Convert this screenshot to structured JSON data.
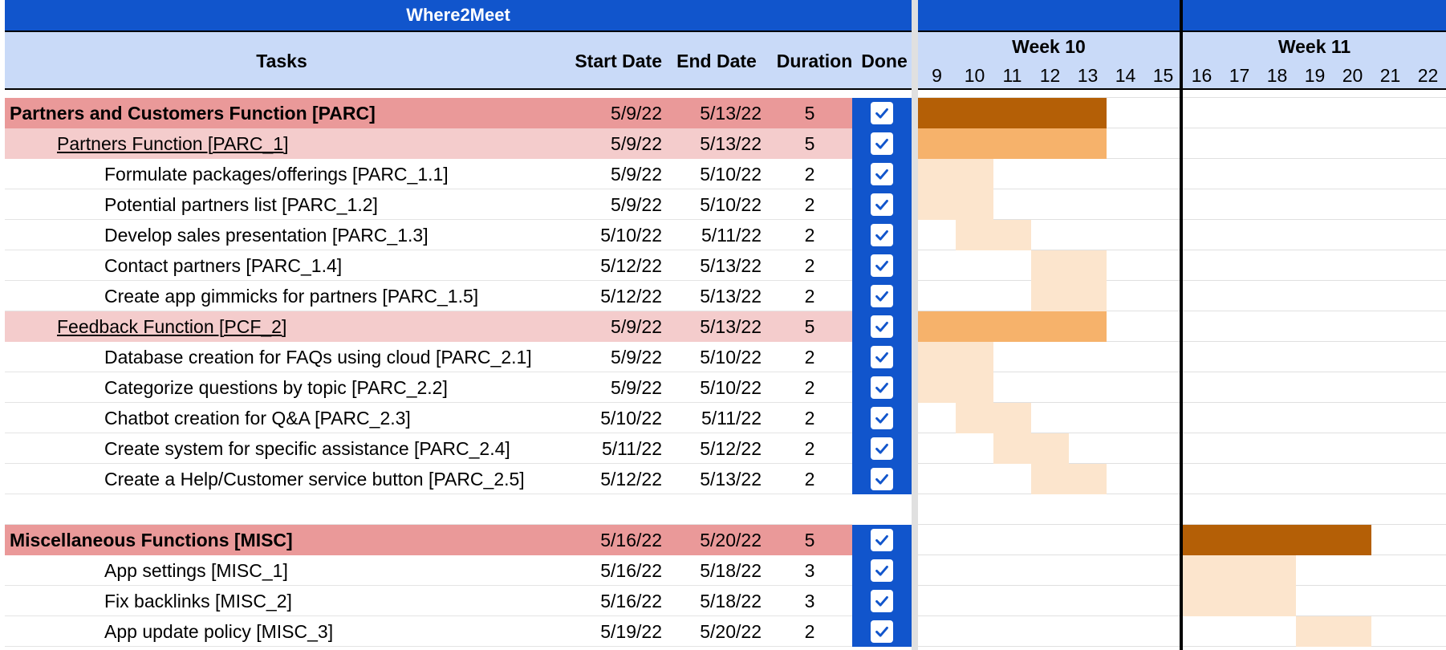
{
  "title": "Where2Meet",
  "headers": {
    "tasks": "Tasks",
    "start_date": "Start Date",
    "end_date": "End Date",
    "duration": "Duration",
    "done": "Done"
  },
  "weeks": [
    {
      "label": "Week 10",
      "days": [
        "9",
        "10",
        "11",
        "12",
        "13",
        "14",
        "15"
      ]
    },
    {
      "label": "Week 11",
      "days": [
        "16",
        "17",
        "18",
        "19",
        "20",
        "21",
        "22"
      ]
    }
  ],
  "colors": {
    "accent": "#1155cc",
    "header_bg": "#c9daf8",
    "section_bg": "#ea9999",
    "subsection_bg": "#f4cccc",
    "bar_section": "#b45f06",
    "bar_subsection": "#f6b26b",
    "bar_task": "#fce5cd"
  },
  "rows": [
    {
      "level": "section",
      "task": "Partners and Customers Function  [PARC]",
      "start": "5/9/22",
      "end": "5/13/22",
      "duration": "5",
      "done": true,
      "bar_start_day": 9,
      "bar_end_day": 13
    },
    {
      "level": "subsection",
      "task": "Partners Function [PARC_1]",
      "start": "5/9/22",
      "end": "5/13/22",
      "duration": "5",
      "done": true,
      "bar_start_day": 9,
      "bar_end_day": 13
    },
    {
      "level": "task",
      "task": "Formulate packages/offerings [PARC_1.1]",
      "start": "5/9/22",
      "end": "5/10/22",
      "duration": "2",
      "done": true,
      "bar_start_day": 9,
      "bar_end_day": 10
    },
    {
      "level": "task",
      "task": "Potential partners list [PARC_1.2]",
      "start": "5/9/22",
      "end": "5/10/22",
      "duration": "2",
      "done": true,
      "bar_start_day": 9,
      "bar_end_day": 10
    },
    {
      "level": "task",
      "task": "Develop sales presentation [PARC_1.3]",
      "start": "5/10/22",
      "end": "5/11/22",
      "duration": "2",
      "done": true,
      "bar_start_day": 10,
      "bar_end_day": 11
    },
    {
      "level": "task",
      "task": "Contact partners [PARC_1.4]",
      "start": "5/12/22",
      "end": "5/13/22",
      "duration": "2",
      "done": true,
      "bar_start_day": 12,
      "bar_end_day": 13
    },
    {
      "level": "task",
      "task": "Create app gimmicks for partners [PARC_1.5]",
      "start": "5/12/22",
      "end": "5/13/22",
      "duration": "2",
      "done": true,
      "bar_start_day": 12,
      "bar_end_day": 13
    },
    {
      "level": "subsection",
      "task": "Feedback Function [PCF_2]",
      "start": "5/9/22",
      "end": "5/13/22",
      "duration": "5",
      "done": true,
      "bar_start_day": 9,
      "bar_end_day": 13
    },
    {
      "level": "task",
      "task": "Database creation for FAQs using cloud [PARC_2.1]",
      "start": "5/9/22",
      "end": "5/10/22",
      "duration": "2",
      "done": true,
      "bar_start_day": 9,
      "bar_end_day": 10
    },
    {
      "level": "task",
      "task": "Categorize questions by topic [PARC_2.2]",
      "start": "5/9/22",
      "end": "5/10/22",
      "duration": "2",
      "done": true,
      "bar_start_day": 9,
      "bar_end_day": 10
    },
    {
      "level": "task",
      "task": "Chatbot creation for Q&A [PARC_2.3]",
      "start": "5/10/22",
      "end": "5/11/22",
      "duration": "2",
      "done": true,
      "bar_start_day": 10,
      "bar_end_day": 11
    },
    {
      "level": "task",
      "task": "Create system for specific assistance [PARC_2.4]",
      "start": "5/11/22",
      "end": "5/12/22",
      "duration": "2",
      "done": true,
      "bar_start_day": 11,
      "bar_end_day": 12
    },
    {
      "level": "task",
      "task": "Create a Help/Customer service button [PARC_2.5]",
      "start": "5/12/22",
      "end": "5/13/22",
      "duration": "2",
      "done": true,
      "bar_start_day": 12,
      "bar_end_day": 13
    },
    {
      "level": "blank"
    },
    {
      "level": "section",
      "task": "Miscellaneous Functions [MISC]",
      "start": "5/16/22",
      "end": "5/20/22",
      "duration": "5",
      "done": true,
      "bar_start_day": 16,
      "bar_end_day": 20
    },
    {
      "level": "task",
      "task": "App settings [MISC_1]",
      "start": "5/16/22",
      "end": "5/18/22",
      "duration": "3",
      "done": true,
      "bar_start_day": 16,
      "bar_end_day": 18
    },
    {
      "level": "task",
      "task": "Fix backlinks [MISC_2]",
      "start": "5/16/22",
      "end": "5/18/22",
      "duration": "3",
      "done": true,
      "bar_start_day": 16,
      "bar_end_day": 18
    },
    {
      "level": "task",
      "task": "App update policy [MISC_3]",
      "start": "5/19/22",
      "end": "5/20/22",
      "duration": "2",
      "done": true,
      "bar_start_day": 19,
      "bar_end_day": 20
    }
  ]
}
